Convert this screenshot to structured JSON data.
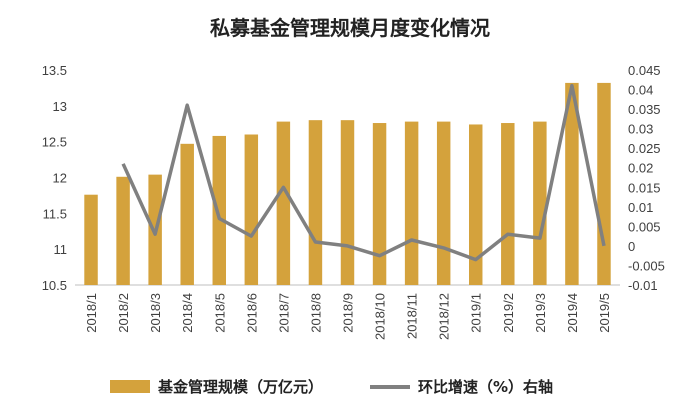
{
  "chart_data": {
    "type": "bar",
    "title": "私募基金管理规模月度变化情况",
    "categories": [
      "2018/1",
      "2018/2",
      "2018/3",
      "2018/4",
      "2018/5",
      "2018/6",
      "2018/7",
      "2018/8",
      "2018/9",
      "2018/10",
      "2018/11",
      "2018/12",
      "2019/1",
      "2019/2",
      "2019/3",
      "2019/4",
      "2019/5"
    ],
    "series": [
      {
        "name": "基金管理规模（万亿元）",
        "type": "bar",
        "axis": "left",
        "color": "#D4A23C",
        "values": [
          11.76,
          12.01,
          12.04,
          12.47,
          12.58,
          12.6,
          12.78,
          12.8,
          12.8,
          12.76,
          12.78,
          12.78,
          12.74,
          12.76,
          12.78,
          13.32,
          13.32
        ]
      },
      {
        "name": "环比增速（%）右轴",
        "type": "line",
        "axis": "right",
        "color": "#808080",
        "values": [
          null,
          0.021,
          0.003,
          0.036,
          0.007,
          0.0025,
          0.015,
          0.001,
          0.0,
          -0.0025,
          0.0015,
          -0.0005,
          -0.0035,
          0.003,
          0.002,
          0.041,
          0.0
        ]
      }
    ],
    "left_axis": {
      "ylim": [
        10.5,
        13.5
      ],
      "ticks": [
        "10.5",
        "11",
        "11.5",
        "12",
        "12.5",
        "13",
        "13.5"
      ]
    },
    "right_axis": {
      "ylim": [
        -0.01,
        0.045
      ],
      "ticks": [
        "-0.01",
        "-0.005",
        "0",
        "0.005",
        "0.01",
        "0.015",
        "0.02",
        "0.025",
        "0.03",
        "0.035",
        "0.04",
        "0.045"
      ]
    },
    "grid": false,
    "legend_position": "bottom"
  }
}
